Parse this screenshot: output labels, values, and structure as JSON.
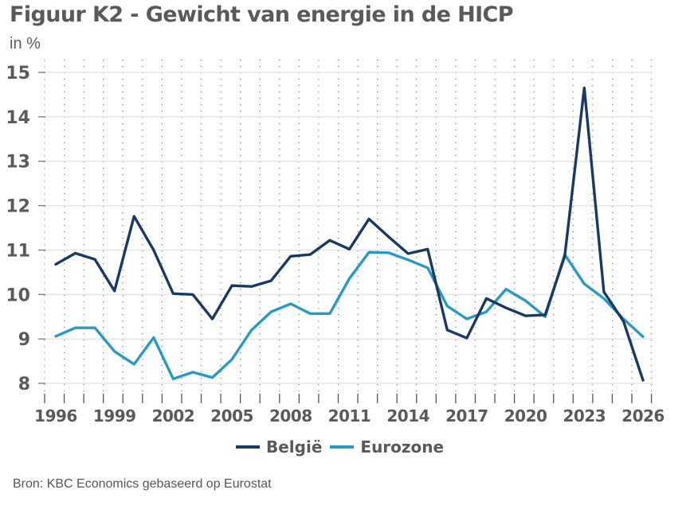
{
  "chart_data": {
    "type": "line",
    "title": "Figuur K2 - Gewicht van energie in de HICP",
    "ylabel": "in %",
    "xlabel": "",
    "source": "Bron: KBC Economics gebaseerd op Eurostat",
    "ylim": [
      8,
      15
    ],
    "yticks": [
      "8",
      "9",
      "10",
      "11",
      "12",
      "13",
      "14",
      "15"
    ],
    "xlim": [
      1996,
      2026
    ],
    "xticks": [
      "1996",
      "1999",
      "2002",
      "2005",
      "2008",
      "2011",
      "2014",
      "2017",
      "2020",
      "2023",
      "2026"
    ],
    "grid": true,
    "legend_position": "bottom-center",
    "x": [
      1996,
      1997,
      1998,
      1999,
      2000,
      2001,
      2002,
      2003,
      2004,
      2005,
      2006,
      2007,
      2008,
      2009,
      2010,
      2011,
      2012,
      2013,
      2014,
      2015,
      2016,
      2017,
      2018,
      2019,
      2020,
      2021,
      2022,
      2023,
      2024,
      2025,
      2026
    ],
    "series": [
      {
        "name": "België",
        "color": "#1a3a63",
        "values": [
          10.68,
          10.93,
          10.79,
          10.08,
          11.76,
          11.0,
          10.02,
          10.0,
          9.45,
          10.2,
          10.18,
          10.31,
          10.86,
          10.9,
          11.22,
          11.02,
          11.7,
          11.3,
          10.92,
          11.02,
          9.2,
          9.02,
          9.91,
          9.7,
          9.52,
          9.54,
          10.86,
          14.65,
          10.06,
          9.4,
          8.07
        ]
      },
      {
        "name": "Eurozone",
        "color": "#2a9ac4",
        "values": [
          9.06,
          9.25,
          9.25,
          8.72,
          8.43,
          9.03,
          8.1,
          8.25,
          8.13,
          8.54,
          9.2,
          9.61,
          9.79,
          9.57,
          9.57,
          10.36,
          10.95,
          10.94,
          10.78,
          10.6,
          9.74,
          9.45,
          9.61,
          10.12,
          9.86,
          9.5,
          10.9,
          10.24,
          9.91,
          9.45,
          9.05
        ]
      }
    ]
  }
}
